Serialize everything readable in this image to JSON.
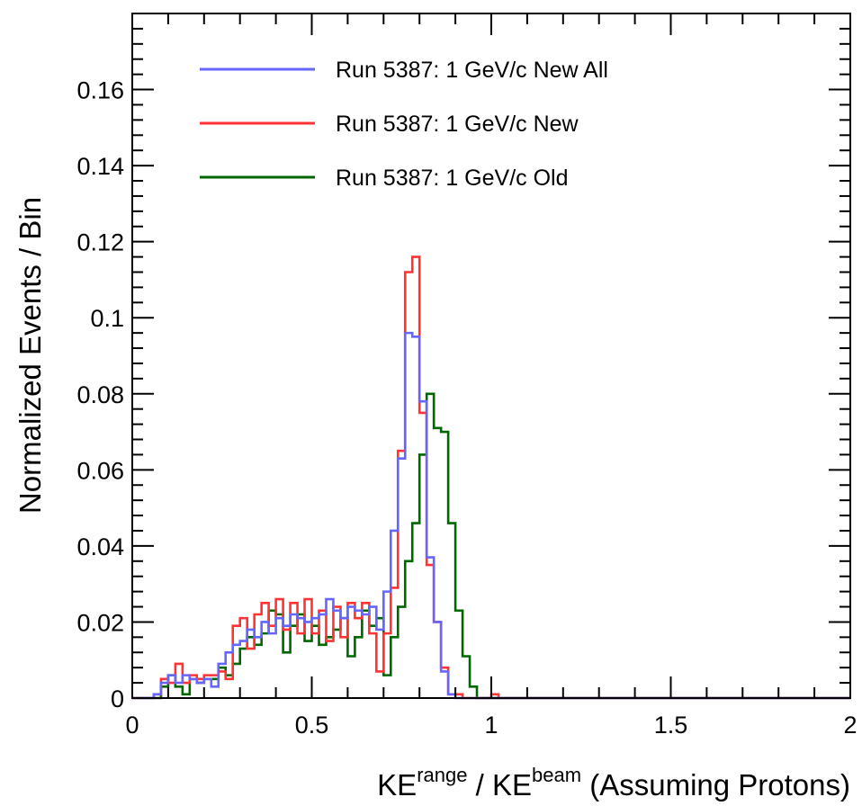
{
  "chart_data": {
    "type": "histogram",
    "xlim": [
      0,
      2
    ],
    "ylim": [
      0,
      0.18
    ],
    "bin_width": 0.02,
    "x_ticks": [
      0,
      0.5,
      1,
      1.5,
      2
    ],
    "x_tick_labels": [
      "0",
      "0.5",
      "1",
      "1.5",
      "2"
    ],
    "y_ticks": [
      0,
      0.02,
      0.04,
      0.06,
      0.08,
      0.1,
      0.12,
      0.14,
      0.16
    ],
    "y_tick_labels": [
      "0",
      "0.02",
      "0.04",
      "0.06",
      "0.08",
      "0.1",
      "0.12",
      "0.14",
      "0.16"
    ],
    "xlabel": {
      "main": "KE",
      "sup": "range",
      "mid": " / KE",
      "sup2": "beam",
      "tail": " (Assuming Protons)"
    },
    "ylabel": "Normalized Events / Bin",
    "grid": false,
    "legend_position": "top-left",
    "series": [
      {
        "name": "Run 5387: 1 GeV/c New All",
        "color": "#6666ff",
        "values": [
          0,
          0,
          0,
          0.001,
          0.004,
          0.006,
          0.004,
          0.006,
          0.005,
          0.004,
          0.005,
          0.003,
          0.009,
          0.012,
          0.014,
          0.015,
          0.018,
          0.016,
          0.02,
          0.017,
          0.021,
          0.019,
          0.022,
          0.021,
          0.02,
          0.021,
          0.022,
          0.026,
          0.023,
          0.021,
          0.024,
          0.023,
          0.022,
          0.024,
          0.018,
          0.028,
          0.044,
          0.063,
          0.096,
          0.095,
          0.078,
          0.037,
          0.02,
          0.007,
          0.001,
          0,
          0,
          0,
          0,
          0,
          0,
          0,
          0,
          0,
          0,
          0,
          0,
          0,
          0,
          0,
          0,
          0,
          0,
          0,
          0,
          0,
          0,
          0,
          0,
          0,
          0,
          0,
          0,
          0,
          0,
          0,
          0,
          0,
          0,
          0,
          0,
          0,
          0,
          0,
          0,
          0,
          0,
          0,
          0,
          0,
          0,
          0,
          0,
          0,
          0,
          0,
          0,
          0,
          0,
          0
        ]
      },
      {
        "name": "Run 5387: 1 GeV/c New",
        "color": "#ff3333",
        "values": [
          0,
          0,
          0,
          0.001,
          0.005,
          0.004,
          0.009,
          0.004,
          0.006,
          0.005,
          0.006,
          0.006,
          0.007,
          0.005,
          0.019,
          0.021,
          0.013,
          0.022,
          0.025,
          0.019,
          0.026,
          0.018,
          0.025,
          0.017,
          0.026,
          0.017,
          0.023,
          0.015,
          0.024,
          0.016,
          0.025,
          0.021,
          0.025,
          0.017,
          0.007,
          0.017,
          0.029,
          0.065,
          0.112,
          0.116,
          0.075,
          0.035,
          0.02,
          0.008,
          0.001,
          0.001,
          0,
          0,
          0,
          0,
          0.001,
          0,
          0,
          0,
          0,
          0,
          0,
          0,
          0,
          0,
          0,
          0,
          0,
          0,
          0,
          0,
          0,
          0,
          0,
          0,
          0,
          0,
          0,
          0,
          0,
          0,
          0,
          0,
          0,
          0,
          0,
          0,
          0,
          0,
          0,
          0,
          0,
          0,
          0,
          0,
          0,
          0,
          0,
          0,
          0,
          0,
          0,
          0,
          0,
          0
        ]
      },
      {
        "name": "Run 5387: 1 GeV/c Old",
        "color": "#006600",
        "values": [
          0,
          0,
          0,
          0,
          0.003,
          0.006,
          0.003,
          0.001,
          0.005,
          0.004,
          0.005,
          0.005,
          0.008,
          0.006,
          0.009,
          0.013,
          0.016,
          0.014,
          0.017,
          0.023,
          0.022,
          0.012,
          0.019,
          0.022,
          0.015,
          0.019,
          0.014,
          0.016,
          0.018,
          0.021,
          0.011,
          0.016,
          0.023,
          0.019,
          0.021,
          0.006,
          0.016,
          0.024,
          0.036,
          0.046,
          0.064,
          0.08,
          0.071,
          0.07,
          0.046,
          0.023,
          0.011,
          0.003,
          0,
          0,
          0,
          0,
          0,
          0,
          0,
          0,
          0,
          0,
          0,
          0,
          0,
          0,
          0,
          0,
          0,
          0,
          0,
          0,
          0,
          0,
          0,
          0,
          0,
          0,
          0,
          0,
          0,
          0,
          0,
          0,
          0,
          0,
          0,
          0,
          0,
          0,
          0,
          0,
          0,
          0,
          0,
          0,
          0,
          0,
          0,
          0,
          0,
          0,
          0,
          0
        ]
      }
    ]
  }
}
